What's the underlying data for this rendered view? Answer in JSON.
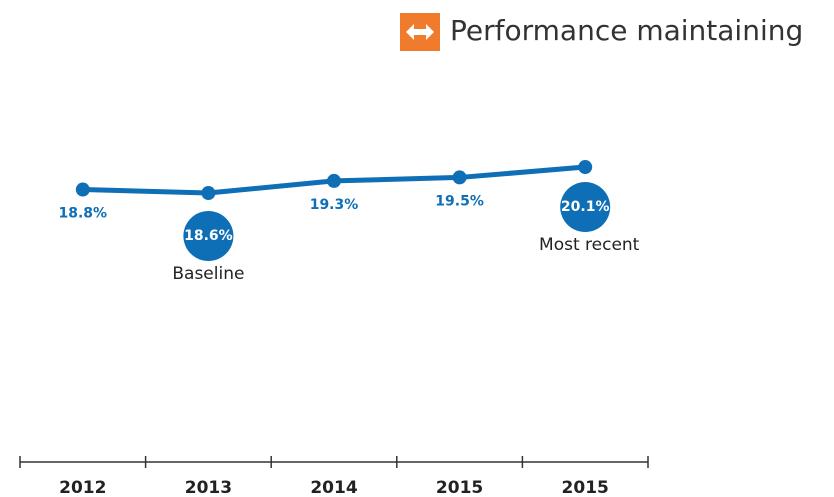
{
  "chart_data": {
    "type": "line",
    "title": "Performance maintaining",
    "categories": [
      "2012",
      "2013",
      "2014",
      "2015",
      "2015"
    ],
    "values": [
      18.8,
      18.6,
      19.3,
      19.5,
      20.1
    ],
    "value_labels": [
      "18.8%",
      "18.6%",
      "19.3%",
      "19.5%",
      "20.1%"
    ],
    "annotations": [
      null,
      "Baseline",
      null,
      null,
      "Most recent"
    ],
    "color": "#0f6fb6"
  }
}
